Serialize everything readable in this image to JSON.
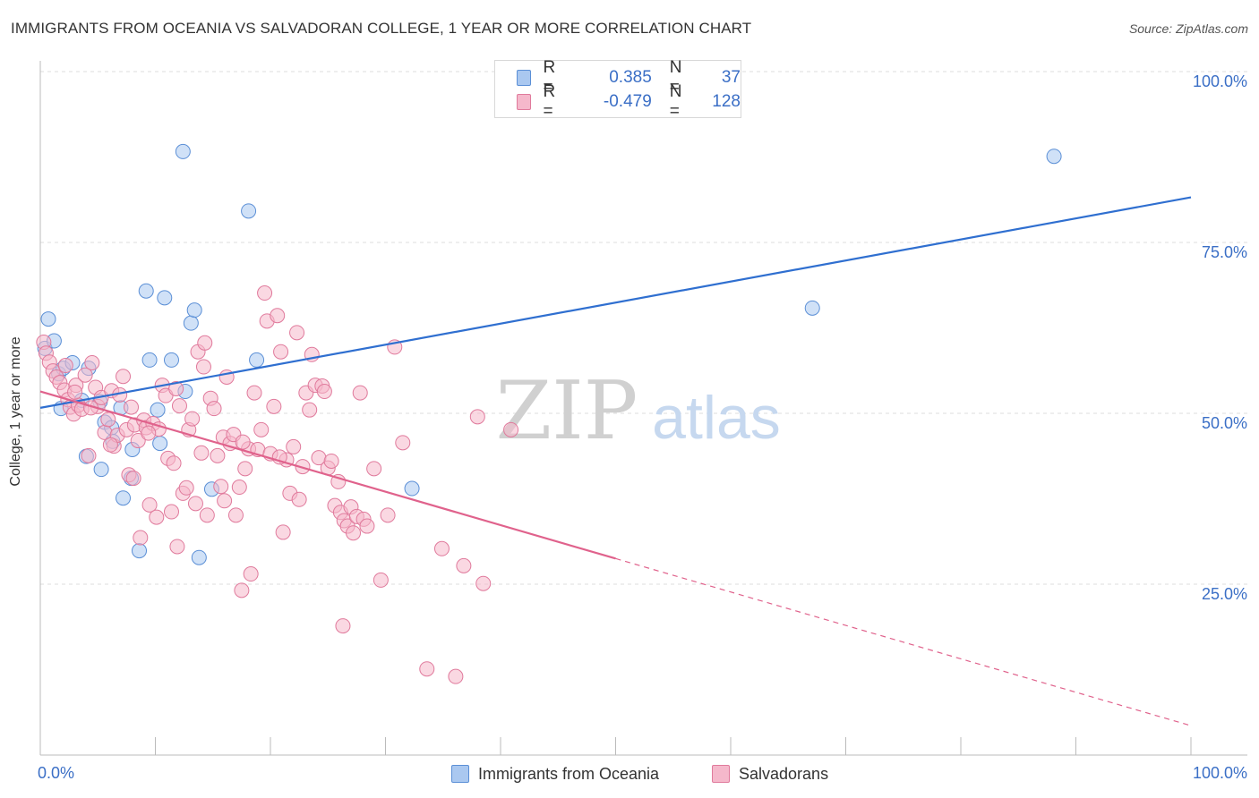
{
  "title": "IMMIGRANTS FROM OCEANIA VS SALVADORAN COLLEGE, 1 YEAR OR MORE CORRELATION CHART",
  "source": "Source: ZipAtlas.com",
  "watermark": {
    "zip": "ZIP",
    "atlas": "atlas"
  },
  "legend": {
    "r_label": "R =",
    "n_label": "N =",
    "rows": [
      {
        "r": "0.385",
        "n": "37",
        "color": "#aac8f0",
        "stroke": "#5b8fd6"
      },
      {
        "r": "-0.479",
        "n": "128",
        "color": "#f5b8cb",
        "stroke": "#e07a9c"
      }
    ]
  },
  "chart_data": {
    "type": "scatter",
    "xlabel": "",
    "ylabel": "College, 1 year or more",
    "xlim": [
      0,
      100
    ],
    "ylim": [
      0,
      100
    ],
    "x_tick_labels": [
      "0.0%",
      "100.0%"
    ],
    "y_tick_values": [
      25,
      50,
      75,
      100
    ],
    "y_tick_labels": [
      "25.0%",
      "50.0%",
      "75.0%",
      "100.0%"
    ],
    "grid": "horizontal dashed",
    "legend_position": "bottom",
    "series": [
      {
        "name": "Immigrants from Oceania",
        "color": "#aac8f0",
        "stroke": "#5b8fd6",
        "line_color": "#2f6fd0",
        "trend": {
          "x0": 0,
          "y0": 50.8,
          "x1": 100,
          "y1": 81.6,
          "dash_from": null
        },
        "points": [
          [
            0.4,
            59.5
          ],
          [
            0.7,
            63.8
          ],
          [
            1.2,
            60.6
          ],
          [
            1.6,
            55.8
          ],
          [
            2.0,
            56.6
          ],
          [
            2.8,
            57.4
          ],
          [
            4.2,
            56.6
          ],
          [
            4.0,
            43.7
          ],
          [
            5.3,
            41.8
          ],
          [
            5.6,
            48.7
          ],
          [
            5.2,
            51.7
          ],
          [
            6.2,
            47.9
          ],
          [
            6.3,
            45.9
          ],
          [
            7.0,
            50.8
          ],
          [
            7.2,
            37.6
          ],
          [
            7.9,
            40.5
          ],
          [
            8.0,
            44.7
          ],
          [
            8.6,
            29.9
          ],
          [
            9.2,
            67.9
          ],
          [
            9.5,
            57.8
          ],
          [
            10.2,
            50.5
          ],
          [
            10.4,
            45.6
          ],
          [
            10.8,
            66.9
          ],
          [
            11.4,
            57.8
          ],
          [
            12.4,
            88.3
          ],
          [
            12.6,
            53.2
          ],
          [
            13.1,
            63.2
          ],
          [
            13.4,
            65.1
          ],
          [
            13.8,
            28.9
          ],
          [
            14.9,
            38.9
          ],
          [
            18.1,
            79.6
          ],
          [
            18.8,
            57.8
          ],
          [
            32.3,
            39.0
          ],
          [
            67.1,
            65.4
          ],
          [
            88.1,
            87.6
          ],
          [
            1.8,
            50.7
          ],
          [
            3.6,
            51.9
          ]
        ]
      },
      {
        "name": "Salvadorans",
        "color": "#f5b8cb",
        "stroke": "#e07a9c",
        "line_color": "#e0628c",
        "trend": {
          "x0": 0,
          "y0": 53.2,
          "x1": 100,
          "y1": 4.3,
          "dash_from": 50
        },
        "points": [
          [
            0.3,
            60.4
          ],
          [
            0.5,
            58.8
          ],
          [
            0.8,
            57.5
          ],
          [
            1.1,
            56.2
          ],
          [
            1.4,
            55.3
          ],
          [
            1.7,
            54.5
          ],
          [
            2.1,
            53.4
          ],
          [
            2.4,
            52.0
          ],
          [
            2.6,
            50.9
          ],
          [
            2.9,
            49.9
          ],
          [
            3.1,
            54.1
          ],
          [
            3.3,
            51.2
          ],
          [
            3.6,
            50.6
          ],
          [
            3.9,
            55.6
          ],
          [
            4.2,
            43.8
          ],
          [
            4.5,
            57.4
          ],
          [
            4.8,
            53.8
          ],
          [
            5.0,
            51.0
          ],
          [
            5.3,
            52.3
          ],
          [
            5.6,
            47.2
          ],
          [
            5.9,
            49.1
          ],
          [
            6.2,
            53.3
          ],
          [
            6.4,
            45.2
          ],
          [
            6.7,
            46.8
          ],
          [
            6.9,
            52.7
          ],
          [
            7.2,
            55.4
          ],
          [
            7.5,
            47.6
          ],
          [
            7.7,
            41.0
          ],
          [
            7.9,
            50.9
          ],
          [
            8.2,
            48.3
          ],
          [
            8.5,
            46.0
          ],
          [
            8.7,
            31.8
          ],
          [
            9.0,
            49.0
          ],
          [
            9.2,
            47.9
          ],
          [
            9.5,
            36.6
          ],
          [
            9.8,
            48.5
          ],
          [
            10.1,
            34.8
          ],
          [
            10.3,
            47.7
          ],
          [
            10.6,
            54.1
          ],
          [
            10.9,
            52.6
          ],
          [
            11.1,
            43.4
          ],
          [
            11.4,
            35.6
          ],
          [
            11.6,
            42.7
          ],
          [
            11.9,
            30.5
          ],
          [
            12.1,
            51.1
          ],
          [
            12.4,
            38.3
          ],
          [
            12.7,
            39.1
          ],
          [
            12.9,
            47.6
          ],
          [
            13.2,
            49.2
          ],
          [
            13.5,
            36.8
          ],
          [
            13.7,
            59.0
          ],
          [
            14.0,
            44.2
          ],
          [
            14.3,
            60.3
          ],
          [
            14.5,
            35.1
          ],
          [
            14.8,
            52.2
          ],
          [
            15.1,
            50.7
          ],
          [
            15.4,
            43.8
          ],
          [
            15.7,
            39.3
          ],
          [
            15.9,
            46.5
          ],
          [
            16.2,
            55.3
          ],
          [
            16.5,
            45.6
          ],
          [
            16.8,
            46.9
          ],
          [
            17.0,
            35.1
          ],
          [
            17.3,
            39.2
          ],
          [
            17.5,
            24.1
          ],
          [
            17.8,
            41.9
          ],
          [
            18.1,
            44.8
          ],
          [
            18.3,
            26.5
          ],
          [
            18.6,
            53.0
          ],
          [
            18.9,
            44.7
          ],
          [
            19.2,
            47.6
          ],
          [
            19.5,
            67.6
          ],
          [
            19.7,
            63.5
          ],
          [
            20.0,
            44.1
          ],
          [
            20.3,
            51.0
          ],
          [
            20.6,
            64.3
          ],
          [
            20.9,
            59.0
          ],
          [
            21.1,
            32.6
          ],
          [
            21.4,
            43.2
          ],
          [
            21.7,
            38.3
          ],
          [
            22.0,
            45.1
          ],
          [
            22.3,
            61.8
          ],
          [
            22.5,
            37.4
          ],
          [
            22.8,
            42.2
          ],
          [
            23.1,
            53.0
          ],
          [
            23.4,
            50.5
          ],
          [
            23.6,
            58.6
          ],
          [
            23.9,
            54.1
          ],
          [
            24.2,
            43.5
          ],
          [
            24.5,
            54.0
          ],
          [
            24.7,
            53.2
          ],
          [
            25.0,
            42.0
          ],
          [
            25.3,
            43.0
          ],
          [
            25.6,
            36.5
          ],
          [
            25.9,
            40.0
          ],
          [
            26.1,
            35.5
          ],
          [
            26.4,
            34.3
          ],
          [
            26.7,
            33.5
          ],
          [
            27.0,
            36.3
          ],
          [
            27.2,
            32.5
          ],
          [
            27.5,
            34.9
          ],
          [
            27.8,
            53.0
          ],
          [
            28.1,
            34.5
          ],
          [
            28.4,
            33.5
          ],
          [
            29.0,
            41.9
          ],
          [
            29.6,
            25.6
          ],
          [
            30.2,
            35.1
          ],
          [
            30.8,
            59.7
          ],
          [
            31.5,
            45.7
          ],
          [
            33.6,
            12.6
          ],
          [
            34.9,
            30.2
          ],
          [
            36.1,
            11.5
          ],
          [
            36.8,
            27.7
          ],
          [
            38.0,
            49.5
          ],
          [
            38.5,
            25.1
          ],
          [
            40.9,
            47.6
          ],
          [
            26.3,
            18.9
          ],
          [
            17.6,
            45.8
          ],
          [
            20.8,
            43.6
          ],
          [
            11.8,
            53.6
          ],
          [
            14.2,
            56.8
          ],
          [
            9.4,
            47.1
          ],
          [
            6.1,
            45.4
          ],
          [
            4.4,
            50.8
          ],
          [
            3.0,
            53.1
          ],
          [
            2.2,
            57.0
          ],
          [
            8.1,
            40.5
          ],
          [
            16.0,
            37.2
          ]
        ]
      }
    ]
  }
}
